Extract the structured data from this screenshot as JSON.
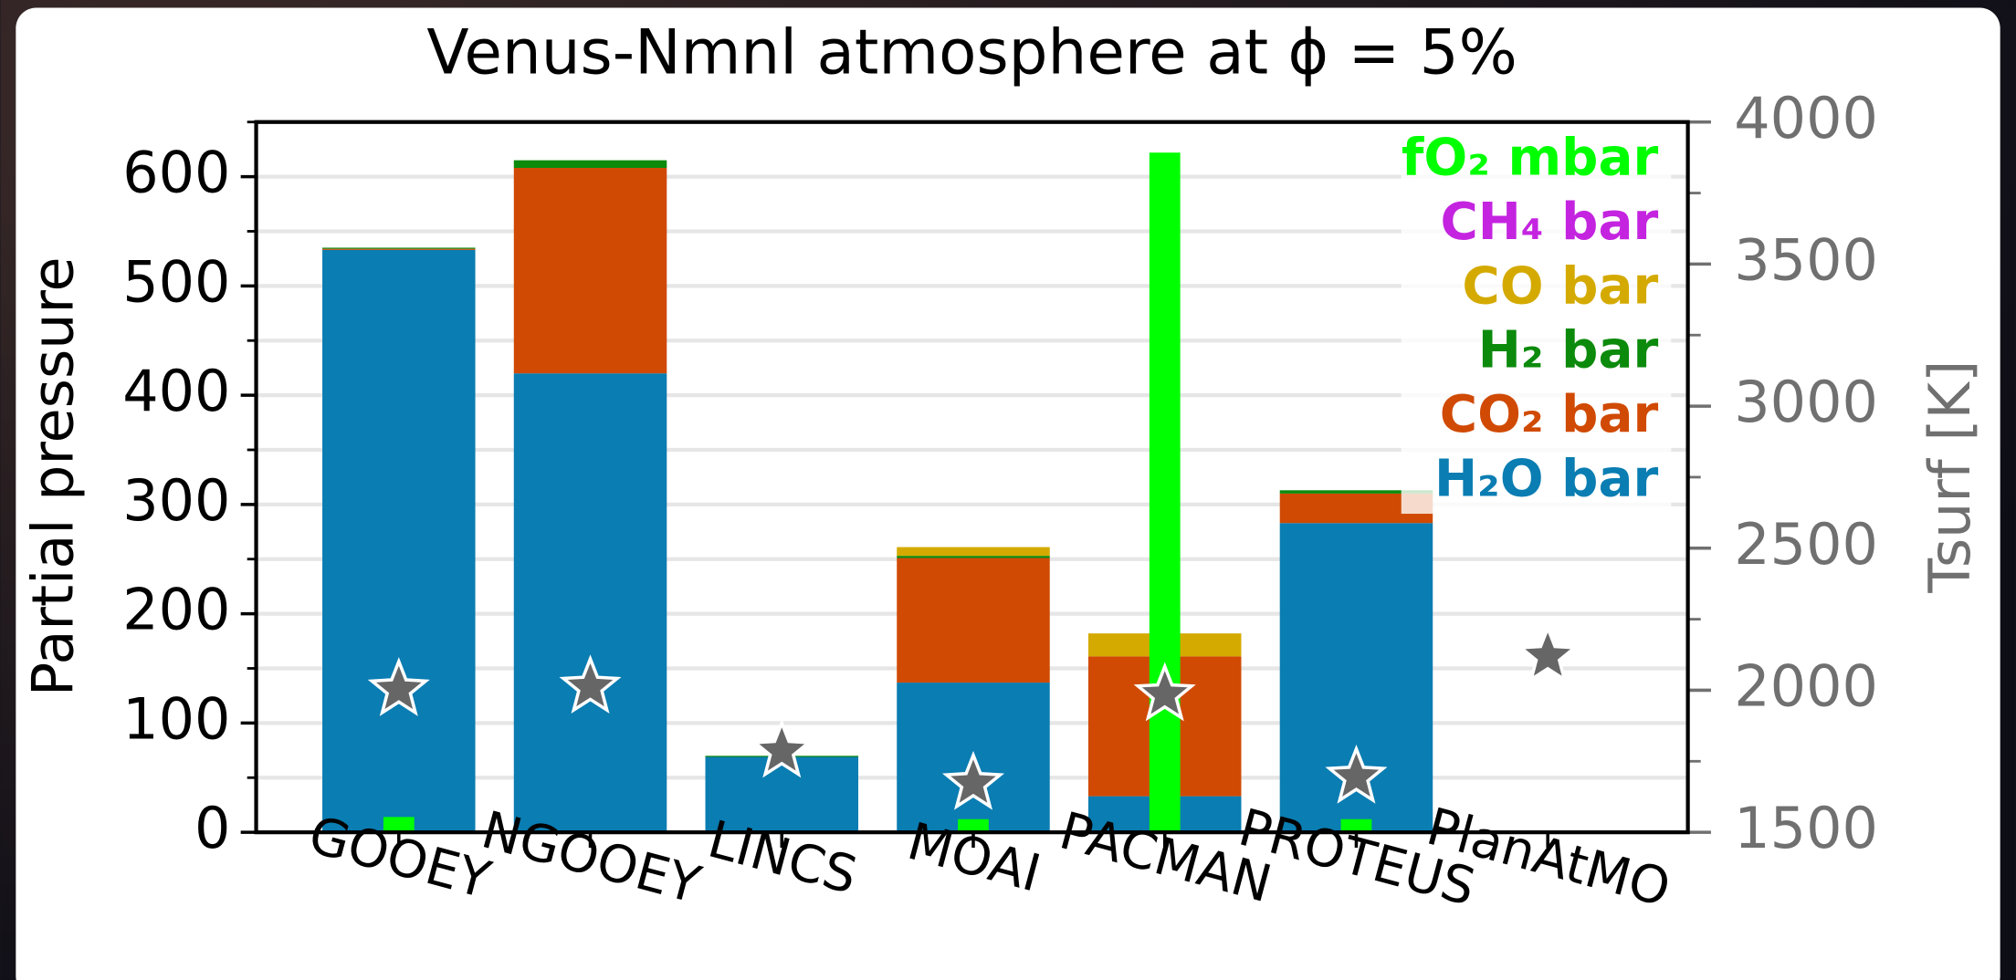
{
  "chart_data": {
    "type": "stacked-bar",
    "title": "Venus-Nmnl atmosphere at ϕ = 5%",
    "ylabel": "Partial pressure",
    "y2label": "Tsurf [K]",
    "categories": [
      "GOOEY",
      "NGOOEY",
      "LINCS",
      "MOAI",
      "PACMAN",
      "PROTEUS",
      "PlanAtMO"
    ],
    "series": [
      {
        "name": "H₂O bar",
        "color": "#0a7db2",
        "values": [
          533,
          420,
          69,
          137,
          33,
          283,
          null
        ]
      },
      {
        "name": "CO₂ bar",
        "color": "#d04a04",
        "values": [
          1,
          188,
          null,
          114,
          128,
          27,
          null
        ]
      },
      {
        "name": "H₂ bar",
        "color": "#0c8a0c",
        "values": [
          1,
          7,
          1,
          2,
          null,
          3,
          null
        ]
      },
      {
        "name": "CO bar",
        "color": "#d4aa00",
        "values": [
          null,
          null,
          null,
          8,
          21,
          null,
          null
        ]
      },
      {
        "name": "CH₄ bar",
        "color": "#c424e0",
        "values": [
          null,
          null,
          null,
          null,
          null,
          null,
          null
        ]
      },
      {
        "name": "fO₂ mbar",
        "color": "#00ff00",
        "stacked": false,
        "values": [
          14,
          null,
          null,
          12,
          622,
          12,
          null
        ]
      }
    ],
    "surface_temperature": {
      "axis": "y2",
      "marker": "star",
      "color": "#666666",
      "values": [
        2002,
        2011,
        1785,
        1672,
        1984,
        1694,
        2119
      ]
    },
    "ylim": [
      0,
      650
    ],
    "yticks": [
      0,
      100,
      200,
      300,
      400,
      500,
      600
    ],
    "yminorticks": [
      50,
      150,
      250,
      350,
      450,
      550,
      650
    ],
    "y2lim": [
      1500,
      4000
    ],
    "y2ticks": [
      1500,
      2000,
      2500,
      3000,
      3500,
      4000
    ],
    "y2minorticks": [
      1750,
      2250,
      2750,
      3250,
      3750
    ],
    "grid": true,
    "legend": "upper right"
  }
}
